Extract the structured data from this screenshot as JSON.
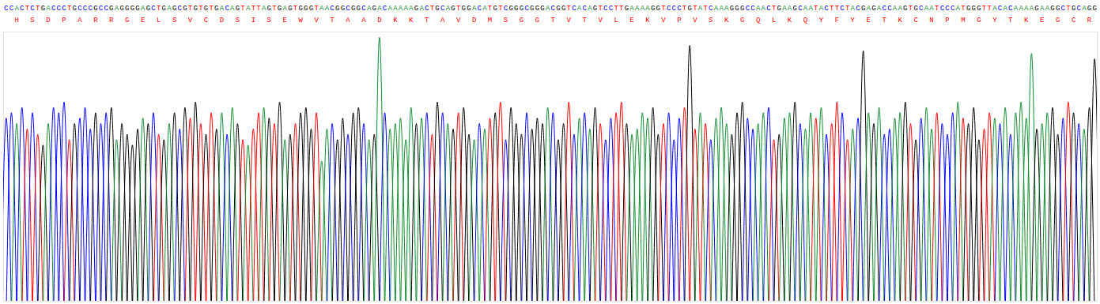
{
  "chart_data": {
    "type": "chromatogram",
    "sequence": "CCACTCTGACCCTGCCCGCCGAGGGGAGCTGAGCGTGTGTGACAGTATTAGTGAGTGGGTAACGGCGGCAGACAAAAAGACTGCAGTGGACATGTCGGGCGGGACGGTCACAGTCCTTGAAAAGGTCCCTGTATCAAAGGGCCAACTGAAGCAATACTTCTACGAGACCAAGTGCAATCCCATGGGTTACACAAAAGAAGGCTGCAGG",
    "translation": [
      "H",
      "S",
      "D",
      "P",
      "A",
      "R",
      "R",
      "G",
      "E",
      "L",
      "S",
      "V",
      "C",
      "D",
      "S",
      "I",
      "S",
      "E",
      "W",
      "V",
      "T",
      "A",
      "A",
      "D",
      "K",
      "K",
      "T",
      "A",
      "V",
      "D",
      "M",
      "S",
      "G",
      "G",
      "T",
      "V",
      "T",
      "V",
      "L",
      "E",
      "K",
      "V",
      "P",
      "V",
      "S",
      "K",
      "G",
      "Q",
      "L",
      "K",
      "Q",
      "Y",
      "F",
      "Y",
      "E",
      "T",
      "K",
      "C",
      "N",
      "P",
      "M",
      "G",
      "Y",
      "T",
      "K",
      "E",
      "G",
      "C",
      "R"
    ],
    "translation_color": "#ff0000",
    "base_colors": {
      "A": "#108a2e",
      "C": "#0000ff",
      "G": "#000000",
      "T": "#ff0000"
    },
    "values": [
      68,
      70,
      66,
      72,
      64,
      70,
      62,
      58,
      66,
      72,
      70,
      74,
      60,
      66,
      68,
      72,
      64,
      70,
      66,
      70,
      72,
      60,
      66,
      62,
      58,
      64,
      68,
      66,
      70,
      62,
      60,
      66,
      70,
      64,
      72,
      68,
      74,
      66,
      62,
      70,
      64,
      70,
      62,
      72,
      66,
      60,
      58,
      64,
      70,
      72,
      68,
      66,
      74,
      60,
      62,
      66,
      70,
      72,
      64,
      70,
      52,
      64,
      66,
      60,
      68,
      62,
      70,
      72,
      66,
      60,
      62,
      98,
      70,
      64,
      66,
      68,
      60,
      72,
      66,
      68,
      70,
      62,
      74,
      70,
      66,
      64,
      70,
      72,
      62,
      60,
      66,
      64,
      68,
      70,
      74,
      60,
      72,
      66,
      62,
      70,
      64,
      68,
      66,
      72,
      70,
      60,
      66,
      74,
      62,
      68,
      70,
      64,
      72,
      66,
      60,
      68,
      70,
      74,
      66,
      62,
      64,
      70,
      68,
      72,
      62,
      66,
      70,
      60,
      68,
      72,
      95,
      64,
      70,
      66,
      60,
      68,
      72,
      66,
      62,
      70,
      74,
      68,
      64,
      66,
      70,
      72,
      60,
      62,
      68,
      70,
      74,
      66,
      64,
      70,
      68,
      72,
      62,
      66,
      74,
      70,
      60,
      64,
      68,
      93,
      70,
      66,
      72,
      62,
      64,
      68,
      70,
      74,
      66,
      60,
      68,
      72,
      64,
      70,
      66,
      62,
      70,
      74,
      68,
      66,
      72,
      60,
      64,
      70,
      68,
      66,
      72,
      62,
      70,
      74,
      68,
      92,
      64,
      66,
      70,
      72,
      62,
      68,
      74,
      70,
      66,
      64,
      72,
      90
    ],
    "ylim": [
      0,
      100
    ],
    "tick_labels": false
  }
}
